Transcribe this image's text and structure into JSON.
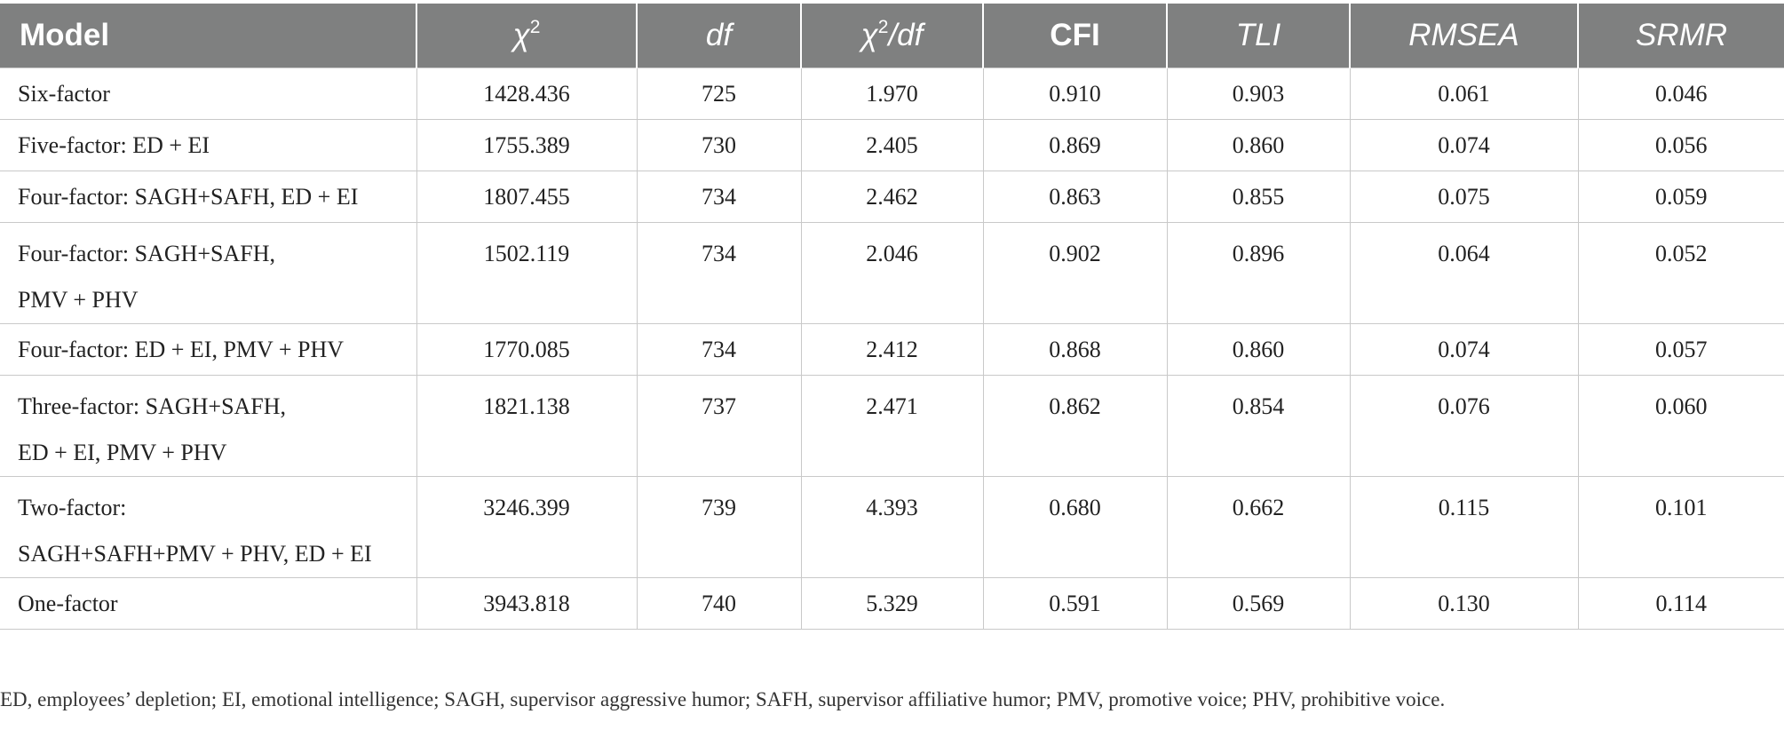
{
  "table": {
    "headers": [
      {
        "key": "model",
        "label": "Model"
      },
      {
        "key": "chi2",
        "label": "χ",
        "sup": "2"
      },
      {
        "key": "df",
        "label": "df"
      },
      {
        "key": "chi2df",
        "label": "χ",
        "sup": "2",
        "suffix": "/df"
      },
      {
        "key": "cfi",
        "label": "CFI"
      },
      {
        "key": "tli",
        "label": "TLI"
      },
      {
        "key": "rmsea",
        "label": "RMSEA"
      },
      {
        "key": "srmr",
        "label": "SRMR"
      }
    ],
    "rows": [
      {
        "model": [
          "Six-factor"
        ],
        "chi2": "1428.436",
        "df": "725",
        "chi2df": "1.970",
        "cfi": "0.910",
        "tli": "0.903",
        "rmsea": "0.061",
        "srmr": "0.046"
      },
      {
        "model": [
          "Five-factor: ED + EI"
        ],
        "chi2": "1755.389",
        "df": "730",
        "chi2df": "2.405",
        "cfi": "0.869",
        "tli": "0.860",
        "rmsea": "0.074",
        "srmr": "0.056"
      },
      {
        "model": [
          "Four-factor: SAGH+SAFH, ED + EI"
        ],
        "chi2": "1807.455",
        "df": "734",
        "chi2df": "2.462",
        "cfi": "0.863",
        "tli": "0.855",
        "rmsea": "0.075",
        "srmr": "0.059"
      },
      {
        "model": [
          "Four-factor: SAGH+SAFH,",
          "PMV + PHV"
        ],
        "chi2": "1502.119",
        "df": "734",
        "chi2df": "2.046",
        "cfi": "0.902",
        "tli": "0.896",
        "rmsea": "0.064",
        "srmr": "0.052"
      },
      {
        "model": [
          "Four-factor: ED + EI, PMV + PHV"
        ],
        "chi2": "1770.085",
        "df": "734",
        "chi2df": "2.412",
        "cfi": "0.868",
        "tli": "0.860",
        "rmsea": "0.074",
        "srmr": "0.057"
      },
      {
        "model": [
          "Three-factor: SAGH+SAFH,",
          "ED + EI, PMV + PHV"
        ],
        "chi2": "1821.138",
        "df": "737",
        "chi2df": "2.471",
        "cfi": "0.862",
        "tli": "0.854",
        "rmsea": "0.076",
        "srmr": "0.060"
      },
      {
        "model": [
          "Two-factor:",
          "SAGH+SAFH+PMV + PHV, ED + EI"
        ],
        "chi2": "3246.399",
        "df": "739",
        "chi2df": "4.393",
        "cfi": "0.680",
        "tli": "0.662",
        "rmsea": "0.115",
        "srmr": "0.101"
      },
      {
        "model": [
          "One-factor"
        ],
        "chi2": "3943.818",
        "df": "740",
        "chi2df": "5.329",
        "cfi": "0.591",
        "tli": "0.569",
        "rmsea": "0.130",
        "srmr": "0.114"
      }
    ]
  },
  "footnote": "ED, employees’ depletion; EI, emotional intelligence; SAGH, supervisor aggressive humor; SAFH, supervisor affiliative humor; PMV, promotive voice; PHV, prohibitive voice.",
  "colors": {
    "header_bg": "#7f8080",
    "header_text": "#ffffff",
    "grid": "#c9c9c9"
  }
}
